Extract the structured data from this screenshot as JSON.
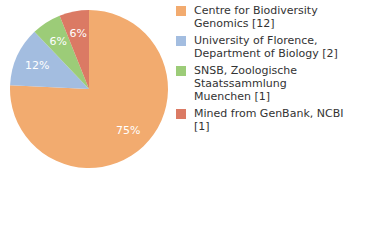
{
  "chart_data": {
    "type": "pie",
    "categories": [
      "Centre for Biodiversity Genomics [12]",
      "University of Florence, Department of Biology [2]",
      "SNSB, Zoologische Staatssammlung Muenchen [1]",
      "Mined from GenBank, NCBI [1]"
    ],
    "values": [
      75,
      12,
      6,
      6
    ],
    "value_labels": [
      "75%",
      "12%",
      "6%",
      "6%"
    ],
    "data_labels": true,
    "legend": "right",
    "colors": [
      "#f2ab6f",
      "#a3bde0",
      "#9ccc78",
      "#db7a64"
    ]
  }
}
